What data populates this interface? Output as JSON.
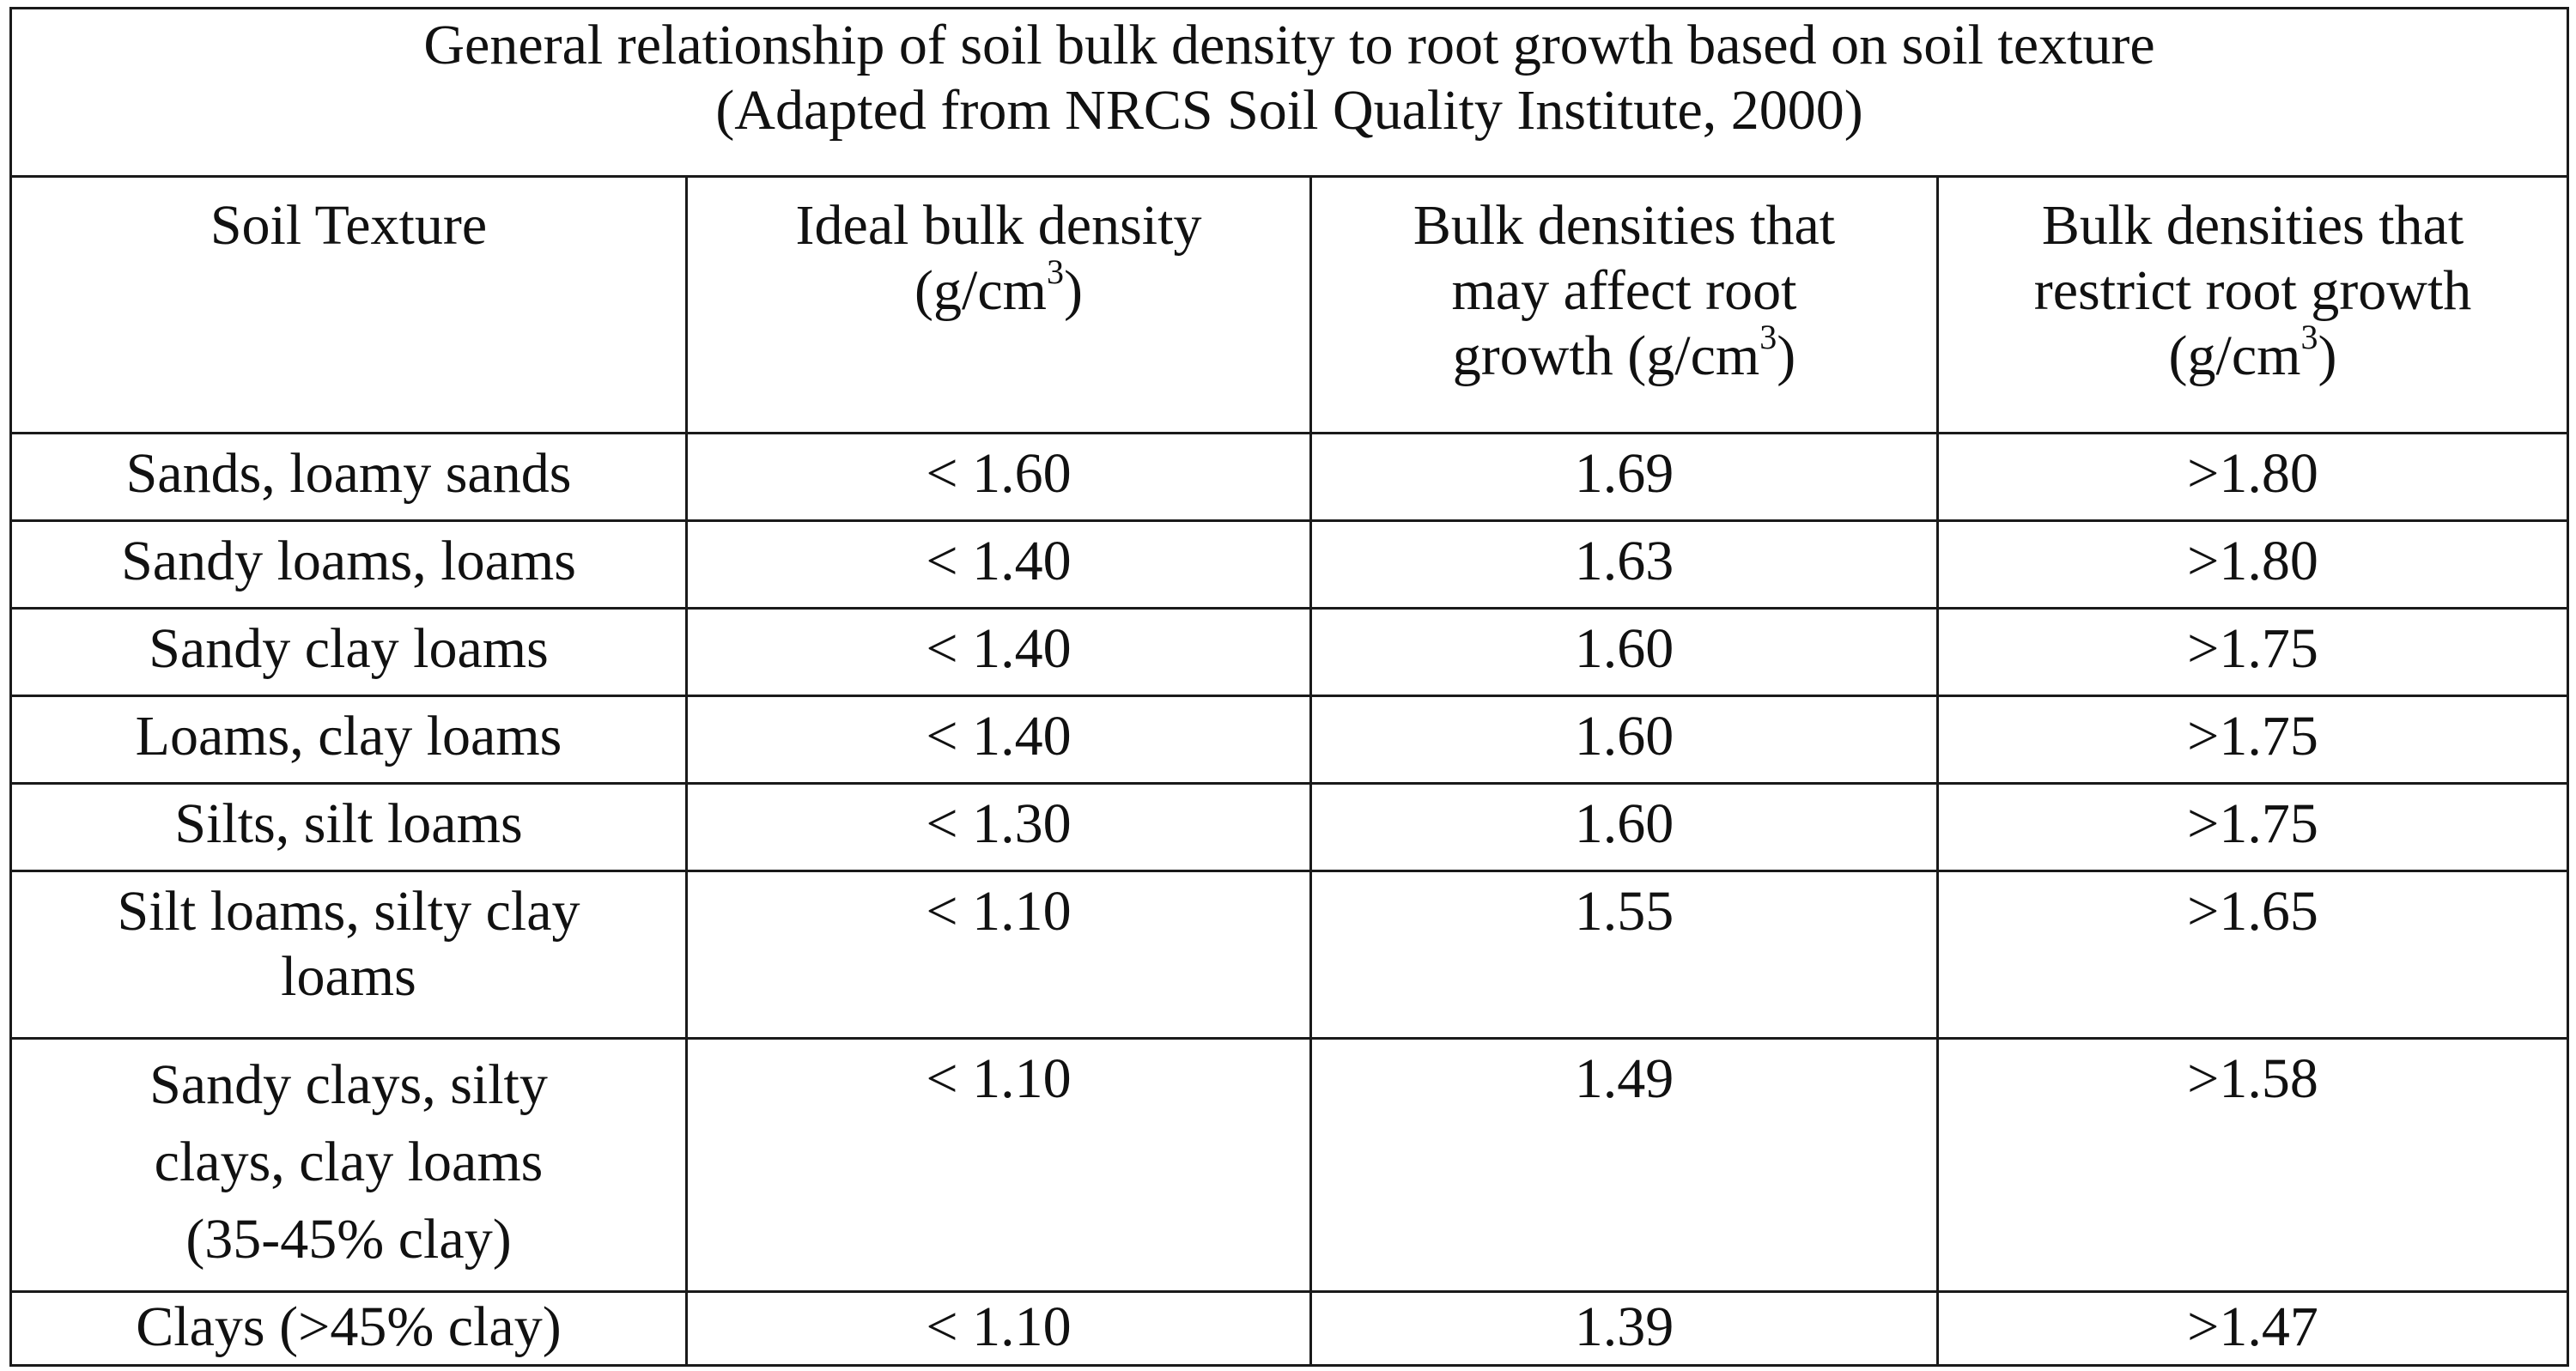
{
  "table": {
    "title_line1": "General relationship of soil bulk density to root growth based on soil texture",
    "title_line2": "(Adapted from NRCS Soil Quality Institute, 2000)",
    "headers": {
      "col1": "Soil Texture",
      "col2_line1": "Ideal bulk density",
      "col2_unit_pre": "(g/cm",
      "col2_unit_sup": "3",
      "col2_unit_post": ")",
      "col3_line1": "Bulk densities that",
      "col3_line2": "may affect root",
      "col3_unit_pre": "growth (g/cm",
      "col3_unit_sup": "3",
      "col3_unit_post": ")",
      "col4_line1": "Bulk densities that",
      "col4_line2": "restrict root growth",
      "col4_unit_pre": "(g/cm",
      "col4_unit_sup": "3",
      "col4_unit_post": ")"
    },
    "rows": [
      {
        "texture": [
          "Sands, loamy sands"
        ],
        "ideal": "< 1.60",
        "affect": "1.69",
        "restrict": ">1.80"
      },
      {
        "texture": [
          "Sandy loams, loams"
        ],
        "ideal": "< 1.40",
        "affect": "1.63",
        "restrict": ">1.80"
      },
      {
        "texture": [
          "Sandy clay loams"
        ],
        "ideal": "< 1.40",
        "affect": "1.60",
        "restrict": ">1.75"
      },
      {
        "texture": [
          "Loams, clay loams"
        ],
        "ideal": "< 1.40",
        "affect": "1.60",
        "restrict": ">1.75"
      },
      {
        "texture": [
          "Silts, silt loams"
        ],
        "ideal": "< 1.30",
        "affect": "1.60",
        "restrict": ">1.75"
      },
      {
        "texture": [
          "Silt loams, silty clay",
          "loams"
        ],
        "ideal": "< 1.10",
        "affect": "1.55",
        "restrict": ">1.65"
      },
      {
        "texture": [
          "Sandy clays, silty",
          "clays, clay loams",
          "(35-45% clay)"
        ],
        "ideal": "< 1.10",
        "affect": "1.49",
        "restrict": ">1.58"
      },
      {
        "texture": [
          "Clays (>45% clay)"
        ],
        "ideal": "< 1.10",
        "affect": "1.39",
        "restrict": ">1.47"
      }
    ]
  }
}
